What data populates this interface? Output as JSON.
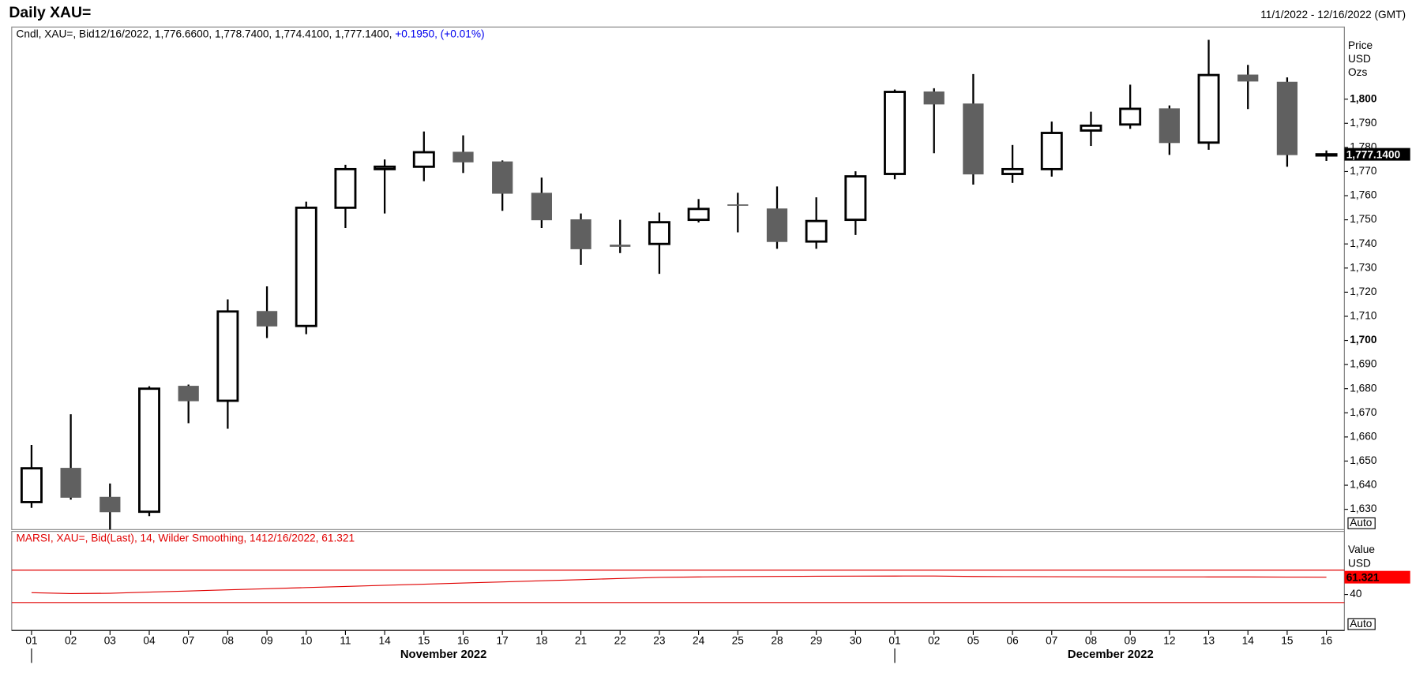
{
  "title": "Daily XAU=",
  "date_range": "11/1/2022 - 12/16/2022 (GMT)",
  "chart_data": [
    {
      "type": "candlestick",
      "legend_text": "Cndl, XAU=, Bid12/16/2022, 1,776.6600, 1,778.7400, 1,774.4100, 1,777.1400,",
      "change_text": "+0.1950, (+0.01%)",
      "axis_label": [
        "Price",
        "USD",
        "Ozs"
      ],
      "scale_mode": "Auto",
      "categories": [
        "01",
        "02",
        "03",
        "04",
        "07",
        "08",
        "09",
        "10",
        "11",
        "14",
        "15",
        "16",
        "17",
        "18",
        "21",
        "22",
        "23",
        "24",
        "25",
        "28",
        "29",
        "30",
        "01",
        "02",
        "05",
        "06",
        "07",
        "08",
        "09",
        "12",
        "13",
        "14",
        "15",
        "16"
      ],
      "month_labels": [
        "November 2022",
        "December 2022"
      ],
      "open": [
        1633,
        1647,
        1635,
        1629,
        1681,
        1675,
        1712,
        1706,
        1755,
        1771,
        1772,
        1778,
        1774,
        1761,
        1750,
        1739.5,
        1740,
        1750,
        1756.2,
        1754.5,
        1741,
        1750,
        1769,
        1803,
        1798,
        1769,
        1771,
        1787,
        1789.5,
        1796,
        1782,
        1810,
        1807,
        1776.66
      ],
      "high": [
        1656.7,
        1669.4,
        1640.7,
        1681,
        1681.7,
        1717,
        1722.4,
        1757.5,
        1772.8,
        1775,
        1786.6,
        1785,
        1774.6,
        1767.5,
        1752.6,
        1750,
        1753,
        1758.6,
        1761.2,
        1763.8,
        1759.3,
        1770.1,
        1804,
        1804.5,
        1810.4,
        1781,
        1790.7,
        1794.8,
        1806,
        1797.4,
        1824.6,
        1814.2,
        1809,
        1778.74
      ],
      "low": [
        1630.6,
        1634,
        1621.6,
        1627.2,
        1665.7,
        1663.4,
        1701,
        1702.6,
        1746.6,
        1752.6,
        1766,
        1769.4,
        1753.7,
        1746.6,
        1731.3,
        1736.2,
        1727.6,
        1748.9,
        1744.8,
        1738,
        1738,
        1743.7,
        1766.8,
        1777.6,
        1764.6,
        1765.3,
        1767.9,
        1780.6,
        1787.7,
        1776.9,
        1779,
        1795.9,
        1772,
        1774.41
      ],
      "close": [
        1647,
        1635,
        1629,
        1680,
        1675,
        1712,
        1706,
        1755,
        1771,
        1772,
        1778,
        1774,
        1761,
        1750,
        1738,
        1739,
        1749,
        1754.5,
        1756,
        1741,
        1749.5,
        1768,
        1803,
        1798,
        1769,
        1771,
        1786,
        1789,
        1796,
        1782,
        1810,
        1807.5,
        1777,
        1777.14
      ],
      "last_label": "1,777.1400",
      "up_color": "#ffffff",
      "down_color": "#606060",
      "outline_color": "#000000",
      "ylim": [
        1621.6,
        1829.9
      ],
      "yticks": [
        {
          "value": 1630,
          "label": "1,630"
        },
        {
          "value": 1640,
          "label": "1,640"
        },
        {
          "value": 1650,
          "label": "1,650"
        },
        {
          "value": 1660,
          "label": "1,660"
        },
        {
          "value": 1670,
          "label": "1,670"
        },
        {
          "value": 1680,
          "label": "1,680"
        },
        {
          "value": 1690,
          "label": "1,690"
        },
        {
          "value": 1700,
          "label": "1,700",
          "bold": true
        },
        {
          "value": 1710,
          "label": "1,710"
        },
        {
          "value": 1720,
          "label": "1,720"
        },
        {
          "value": 1730,
          "label": "1,730"
        },
        {
          "value": 1740,
          "label": "1,740"
        },
        {
          "value": 1750,
          "label": "1,750"
        },
        {
          "value": 1760,
          "label": "1,760"
        },
        {
          "value": 1770,
          "label": "1,770"
        },
        {
          "value": 1780,
          "label": "1,780"
        },
        {
          "value": 1790,
          "label": "1,790"
        },
        {
          "value": 1800,
          "label": "1,800",
          "bold": true
        }
      ]
    },
    {
      "type": "line",
      "legend_text": "MARSI, XAU=, Bid(Last),  14, Wilder Smoothing, 1412/16/2022, 61.321",
      "axis_label": [
        "Value",
        "USD"
      ],
      "scale_mode": "Auto",
      "color": "#e00000",
      "values": [
        42.2,
        41.1,
        41.5,
        42.9,
        44.3,
        45.7,
        47.1,
        48.5,
        49.9,
        51.3,
        52.7,
        54.1,
        55.5,
        56.9,
        58.3,
        59.7,
        61.1,
        61.6,
        62.0,
        62.3,
        62.5,
        62.6,
        62.7,
        62.8,
        62.2,
        62.0,
        61.9,
        61.8,
        61.7,
        61.7,
        61.6,
        61.6,
        61.4,
        61.321
      ],
      "last_label": "61.321",
      "levels": [
        70,
        30
      ],
      "ylim": [
        -4.4,
        117.8
      ],
      "yticks": [
        40
      ]
    }
  ]
}
